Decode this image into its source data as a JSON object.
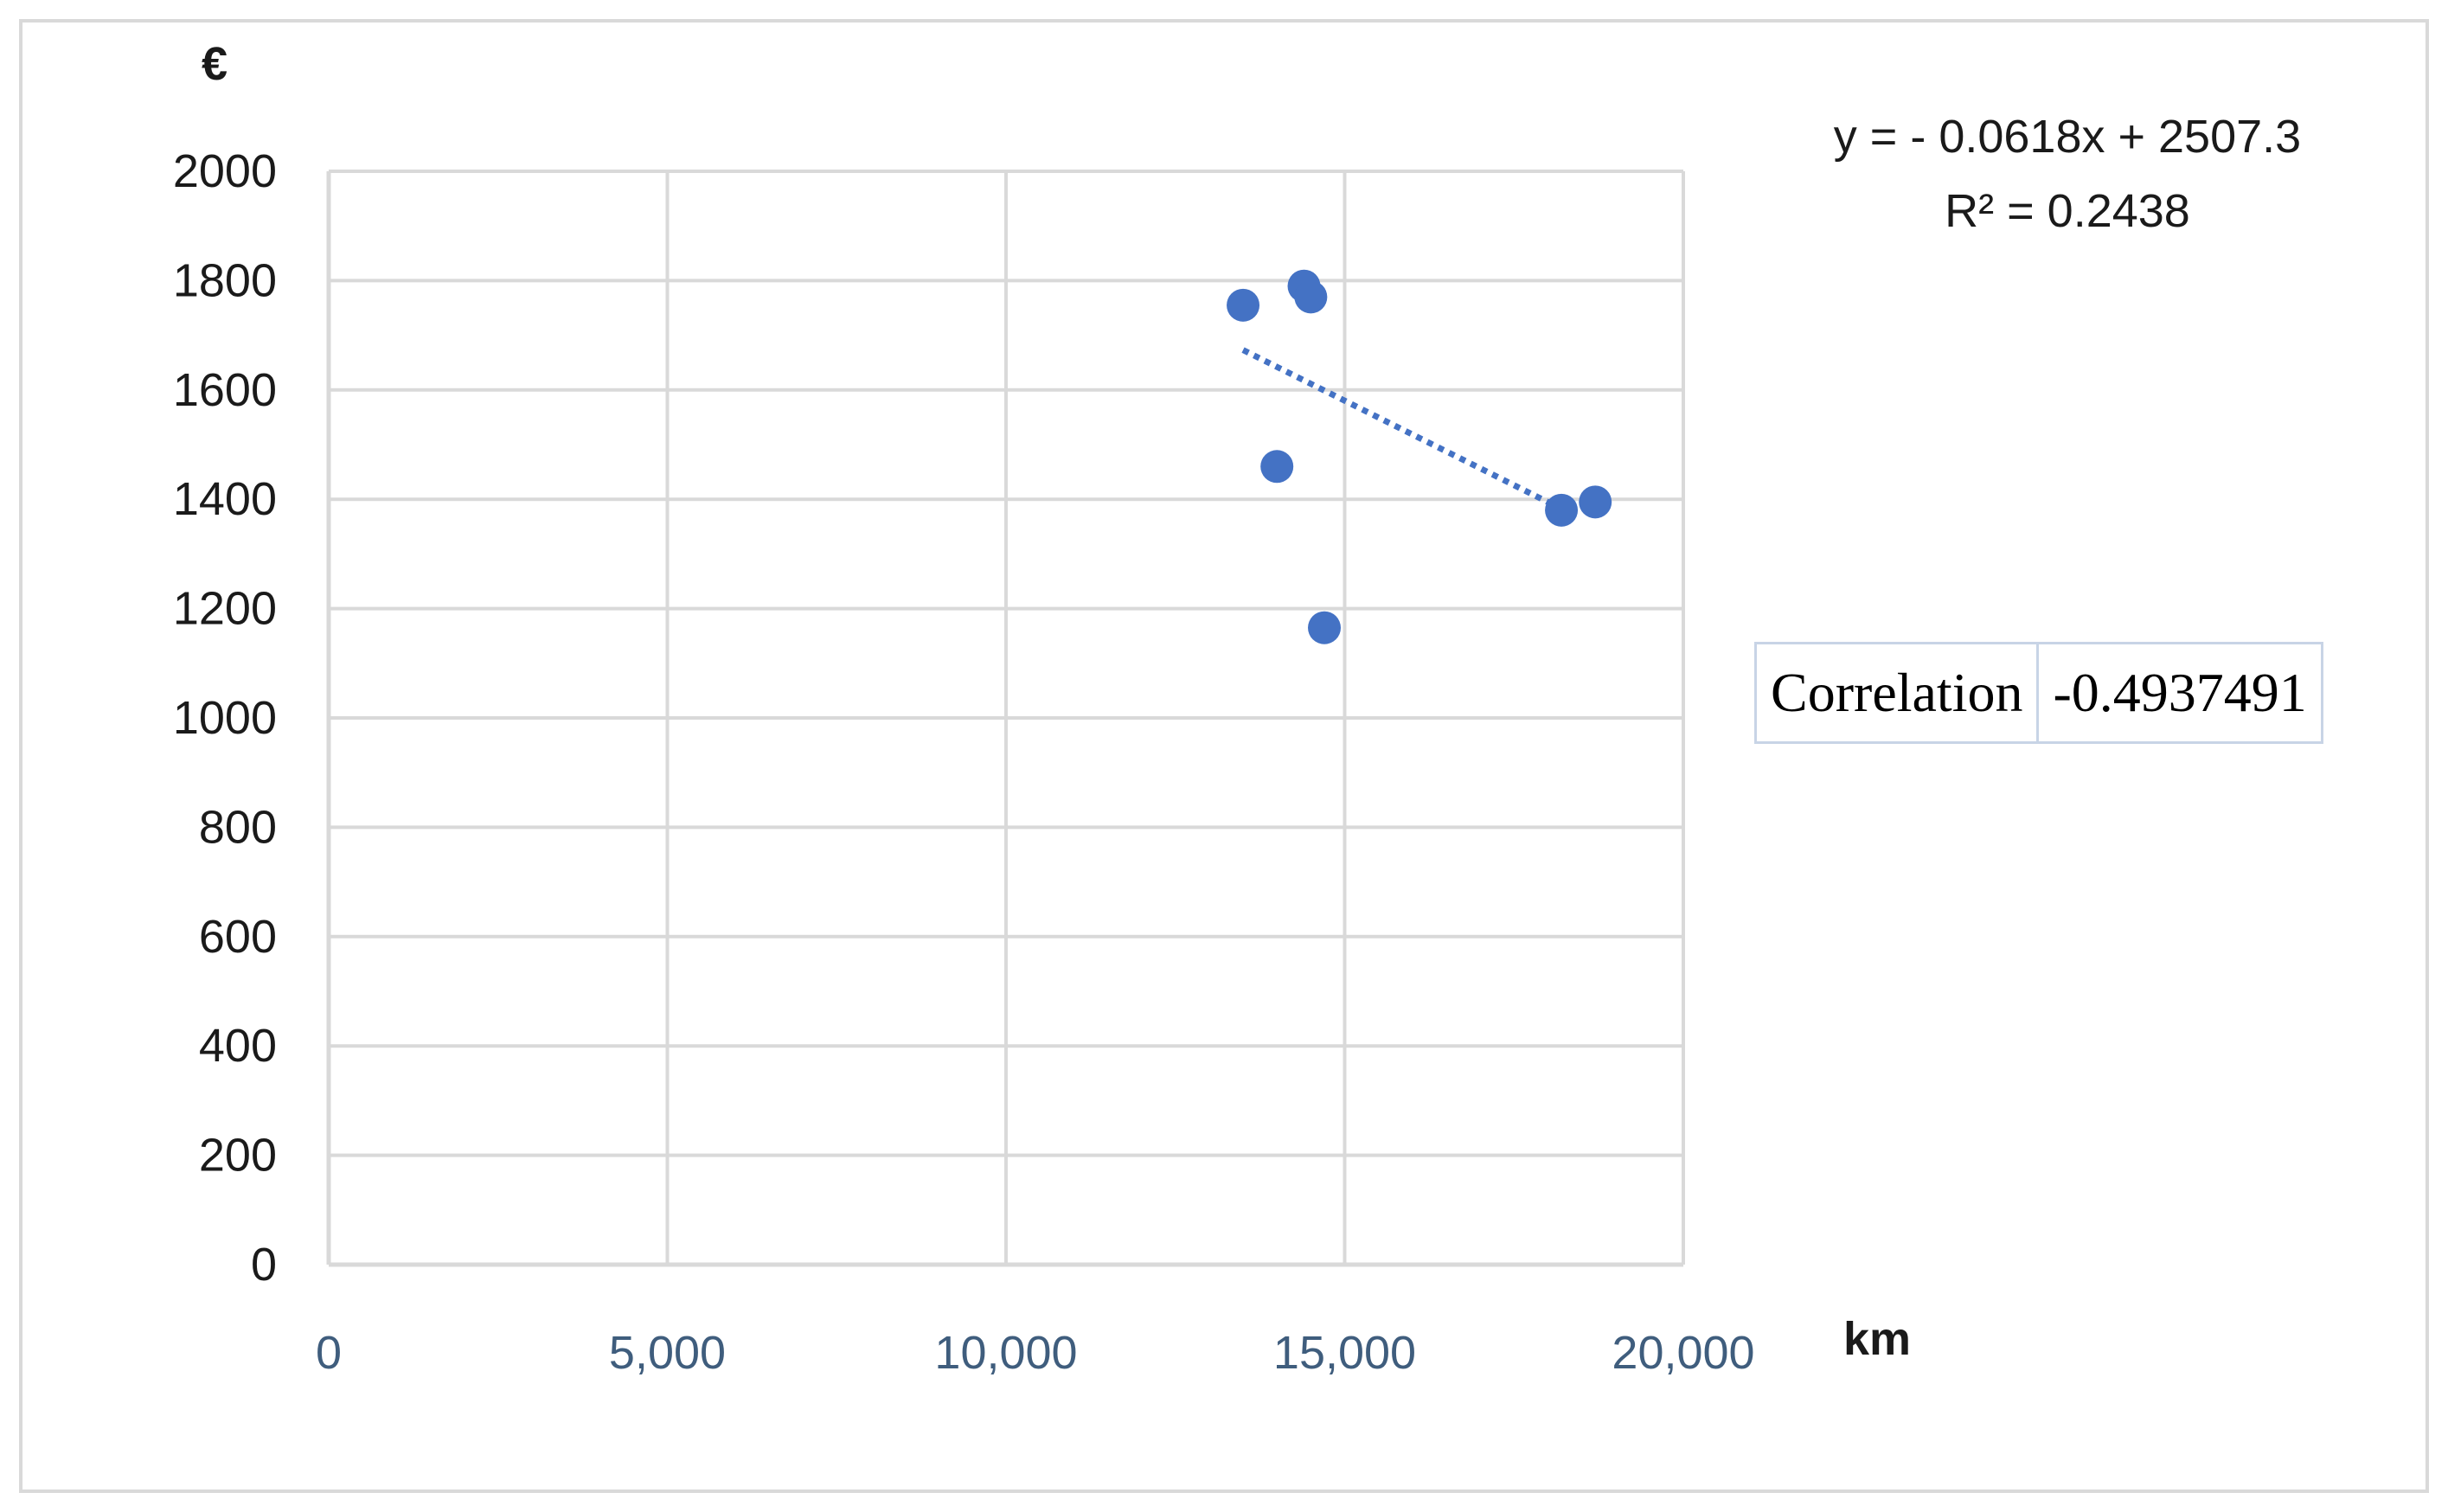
{
  "chart_data": {
    "type": "scatter",
    "xlabel": "km",
    "ylabel": "€",
    "xlim": [
      0,
      20000
    ],
    "ylim": [
      0,
      2000
    ],
    "x_ticks": [
      "0",
      "5,000",
      "10,000",
      "15,000",
      "20,000"
    ],
    "y_ticks": [
      "0",
      "200",
      "400",
      "600",
      "800",
      "1000",
      "1200",
      "1400",
      "1600",
      "1800",
      "2000"
    ],
    "grid": true,
    "points": [
      {
        "x": 13500,
        "y": 1755
      },
      {
        "x": 14400,
        "y": 1790
      },
      {
        "x": 14500,
        "y": 1770
      },
      {
        "x": 14000,
        "y": 1460
      },
      {
        "x": 14700,
        "y": 1165
      },
      {
        "x": 18200,
        "y": 1380
      },
      {
        "x": 18700,
        "y": 1395
      }
    ],
    "trendline": {
      "style": "dotted",
      "slope": -0.0618,
      "intercept": 2507.3,
      "x_range": [
        13500,
        18200
      ],
      "equation_label": "y = - 0.0618x + 2507.3",
      "r2_label": "R² = 0.2438"
    },
    "colors": {
      "points": "#4472c4",
      "grid": "#d9d9d9",
      "trendline": "#4472c4"
    }
  },
  "correlation_table": {
    "label": "Correlation",
    "value": "-0.4937491"
  }
}
